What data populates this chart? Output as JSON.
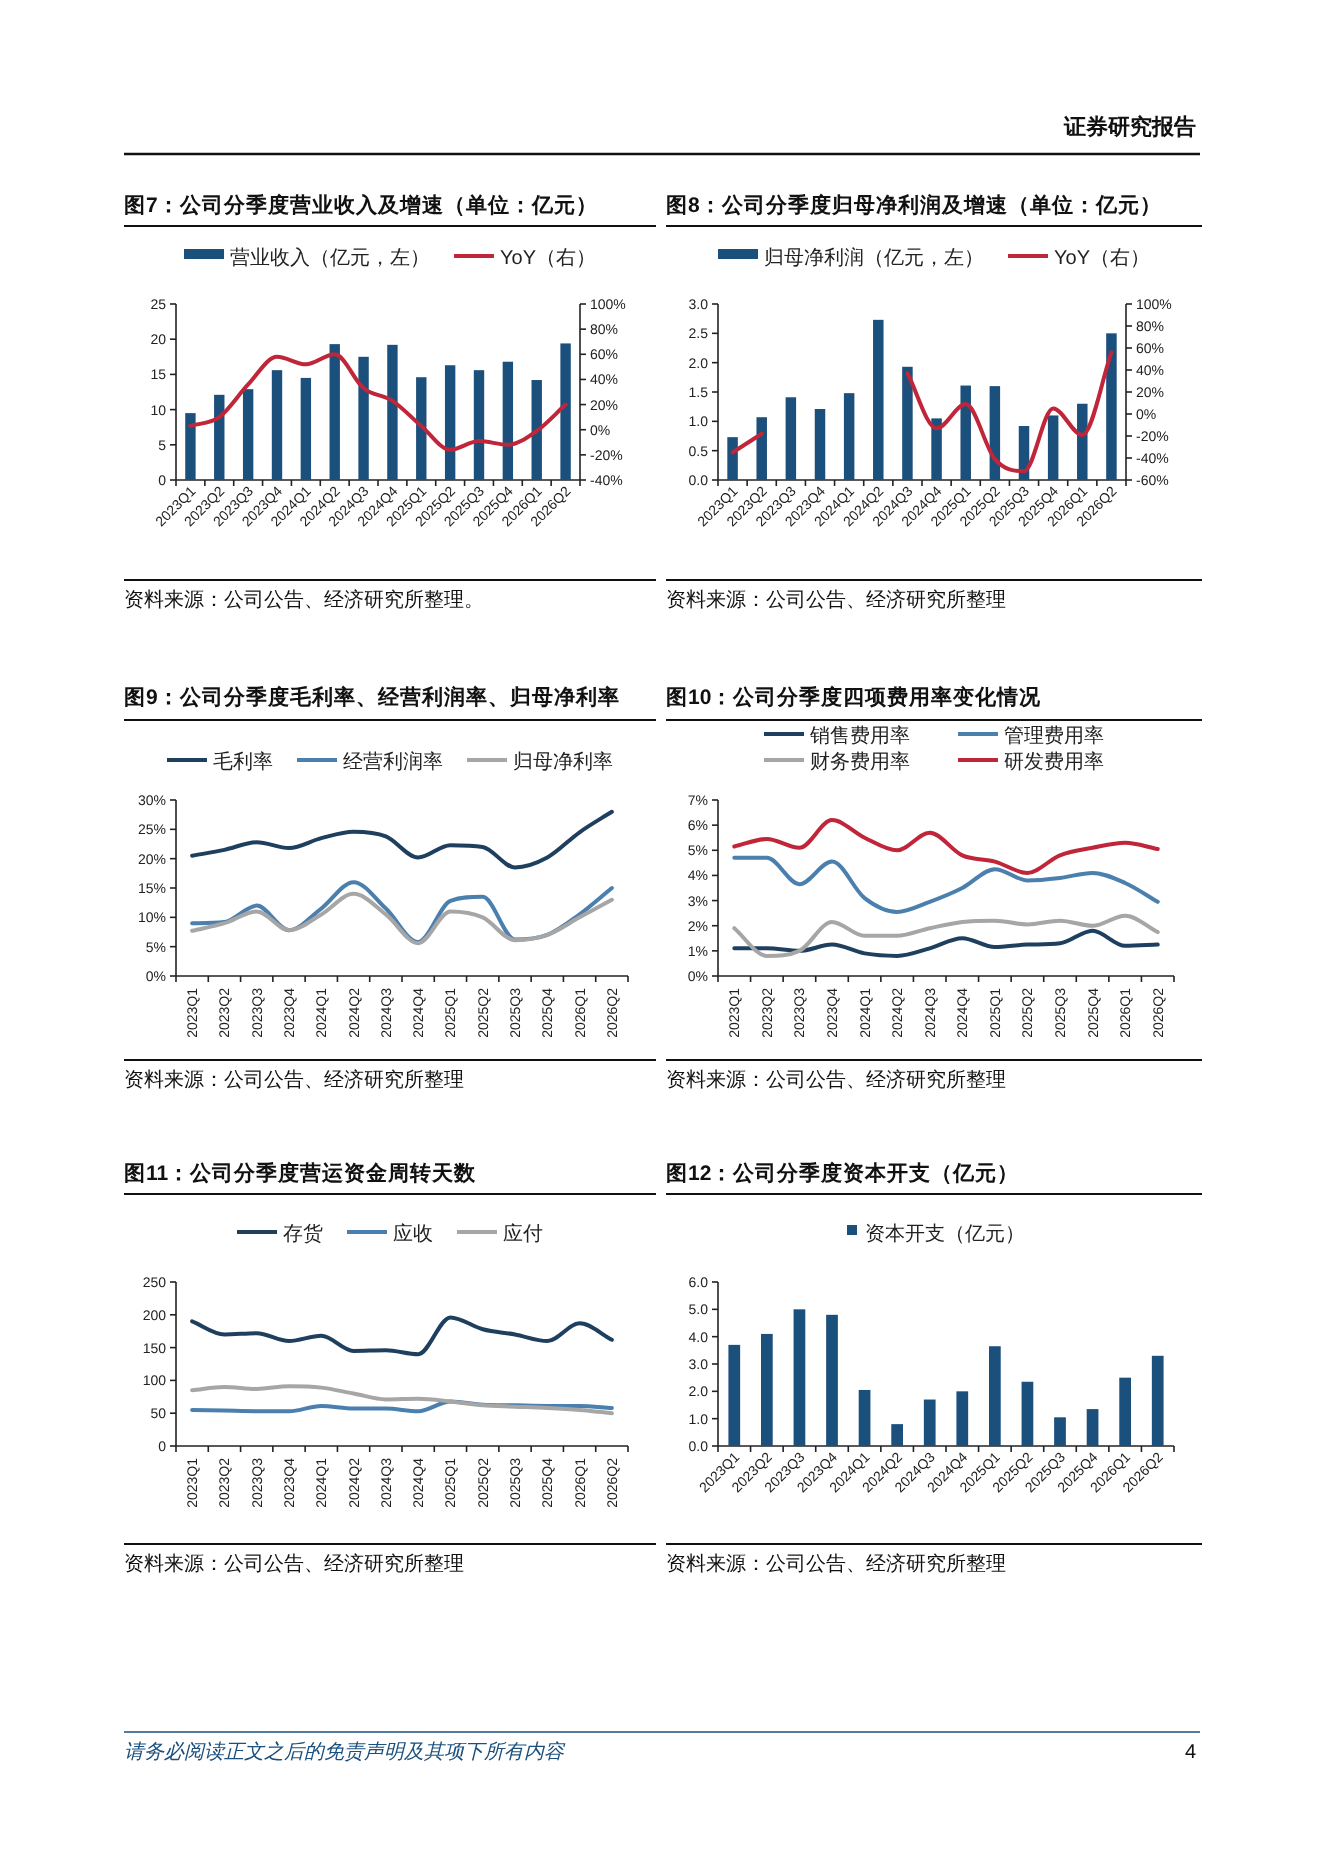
{
  "chart_data": [
    {
      "type": "bar",
      "title": "图7：公司分季度营业收入及增速（单位：亿元）",
      "categories": [
        "2023Q1",
        "2023Q2",
        "2023Q3",
        "2023Q4",
        "2024Q1",
        "2024Q2",
        "2024Q3",
        "2024Q4",
        "2025Q1",
        "2025Q2",
        "2025Q3",
        "2025Q4",
        "2026Q1",
        "2026Q2"
      ],
      "series": [
        {
          "name": "营业收入（亿元，左）",
          "color": "#1b4f7c",
          "values": [
            9.5,
            12.1,
            12.9,
            15.6,
            14.5,
            19.3,
            17.5,
            19.2,
            14.6,
            16.3,
            15.6,
            16.8,
            14.2,
            19.4
          ]
        },
        {
          "name": "YoY（右）",
          "type": "line",
          "axis": "y2",
          "color": "#c0263a",
          "values": [
            3,
            10,
            36,
            58,
            52,
            60,
            33,
            23,
            3,
            -16,
            -9,
            -12,
            -1,
            20
          ]
        }
      ],
      "ylim": [
        0,
        25
      ],
      "yticks": [
        0,
        5,
        10,
        15,
        20,
        25
      ],
      "y2lim": [
        -40,
        100
      ],
      "y2ticks": [
        {
          "value": -40,
          "label": "-40%"
        },
        {
          "value": -20,
          "label": "-20%"
        },
        {
          "value": 0,
          "label": "0%"
        },
        {
          "value": 20,
          "label": "20%"
        },
        {
          "value": 40,
          "label": "40%"
        },
        {
          "value": 60,
          "label": "60%"
        },
        {
          "value": 80,
          "label": "80%"
        },
        {
          "value": 100,
          "label": "100%"
        }
      ],
      "legend": "top",
      "annotations": [
        "资料来源：公司公告、经济研究所整理。"
      ]
    },
    {
      "type": "bar",
      "title": "图8：公司分季度归母净利润及增速（单位：亿元）",
      "categories": [
        "2023Q1",
        "2023Q2",
        "2023Q3",
        "2023Q4",
        "2024Q1",
        "2024Q2",
        "2024Q3",
        "2024Q4",
        "2025Q1",
        "2025Q2",
        "2025Q3",
        "2025Q4",
        "2026Q1",
        "2026Q2"
      ],
      "series": [
        {
          "name": "归母净利润（亿元，左）",
          "color": "#1b4f7c",
          "values": [
            0.73,
            1.07,
            1.41,
            1.21,
            1.48,
            2.73,
            1.93,
            1.05,
            1.61,
            1.6,
            0.92,
            1.1,
            1.3,
            2.5
          ]
        },
        {
          "name": "YoY（右）",
          "type": "line",
          "axis": "y2",
          "color": "#c0263a",
          "values": [
            -35,
            -18,
            null,
            null,
            null,
            null,
            37,
            -13,
            9,
            -41,
            -52,
            5,
            -19,
            56
          ]
        }
      ],
      "ylim": [
        0,
        3
      ],
      "yticks": [
        {
          "value": 0,
          "label": "0.0"
        },
        {
          "value": 0.5,
          "label": "0.5"
        },
        {
          "value": 1,
          "label": "1.0"
        },
        {
          "value": 1.5,
          "label": "1.5"
        },
        {
          "value": 2,
          "label": "2.0"
        },
        {
          "value": 2.5,
          "label": "2.5"
        },
        {
          "value": 3,
          "label": "3.0"
        }
      ],
      "y2lim": [
        -60,
        100
      ],
      "y2ticks": [
        {
          "value": -60,
          "label": "-60%"
        },
        {
          "value": -40,
          "label": "-40%"
        },
        {
          "value": -20,
          "label": "-20%"
        },
        {
          "value": 0,
          "label": "0%"
        },
        {
          "value": 20,
          "label": "20%"
        },
        {
          "value": 40,
          "label": "40%"
        },
        {
          "value": 60,
          "label": "60%"
        },
        {
          "value": 80,
          "label": "80%"
        },
        {
          "value": 100,
          "label": "100%"
        }
      ],
      "legend": "top",
      "annotations": [
        "资料来源：公司公告、经济研究所整理"
      ]
    },
    {
      "type": "line",
      "title": "图9：公司分季度毛利率、经营利润率、归母净利率",
      "categories": [
        "2023Q1",
        "2023Q2",
        "2023Q3",
        "2023Q4",
        "2024Q1",
        "2024Q2",
        "2024Q3",
        "2024Q4",
        "2025Q1",
        "2025Q2",
        "2025Q3",
        "2025Q4",
        "2026Q1",
        "2026Q2"
      ],
      "series": [
        {
          "name": "毛利率",
          "color": "#1f3f5f",
          "values": [
            20.5,
            21.5,
            22.8,
            21.8,
            23.5,
            24.6,
            23.8,
            20.2,
            22.3,
            22.0,
            18.5,
            20.2,
            24.5,
            28.0
          ]
        },
        {
          "name": "经营利润率",
          "color": "#4a7fae",
          "values": [
            9.0,
            9.2,
            12.0,
            7.8,
            11.5,
            16.0,
            11.5,
            5.8,
            12.8,
            13.5,
            6.2,
            7.0,
            10.5,
            15.0
          ]
        },
        {
          "name": "归母净利率",
          "color": "#a6a6a6",
          "values": [
            7.7,
            9.0,
            11.0,
            7.8,
            10.5,
            14.0,
            10.5,
            5.6,
            11.0,
            10.0,
            6.1,
            7.0,
            10.0,
            13.0
          ]
        }
      ],
      "ylim": [
        0,
        30
      ],
      "yticks": [
        {
          "value": 0,
          "label": "0%"
        },
        {
          "value": 5,
          "label": "5%"
        },
        {
          "value": 10,
          "label": "10%"
        },
        {
          "value": 15,
          "label": "15%"
        },
        {
          "value": 20,
          "label": "20%"
        },
        {
          "value": 25,
          "label": "25%"
        },
        {
          "value": 30,
          "label": "30%"
        }
      ],
      "legend": "top",
      "annotations": [
        "资料来源：公司公告、经济研究所整理"
      ]
    },
    {
      "type": "line",
      "title": "图10：公司分季度四项费用率变化情况",
      "categories": [
        "2023Q1",
        "2023Q2",
        "2023Q3",
        "2023Q4",
        "2024Q1",
        "2024Q2",
        "2024Q3",
        "2024Q4",
        "2025Q1",
        "2025Q2",
        "2025Q3",
        "2025Q4",
        "2026Q1",
        "2026Q2"
      ],
      "series": [
        {
          "name": "销售费用率",
          "color": "#1f3f5f",
          "values": [
            1.1,
            1.1,
            1.0,
            1.25,
            0.9,
            0.8,
            1.1,
            1.5,
            1.15,
            1.25,
            1.3,
            1.8,
            1.2,
            1.25
          ]
        },
        {
          "name": "管理费用率",
          "color": "#4a7fae",
          "values": [
            4.7,
            4.7,
            3.65,
            4.55,
            3.1,
            2.55,
            2.95,
            3.5,
            4.25,
            3.8,
            3.9,
            4.1,
            3.7,
            2.95
          ]
        },
        {
          "name": "财务费用率",
          "color": "#a6a6a6",
          "values": [
            1.9,
            0.8,
            1.0,
            2.15,
            1.6,
            1.6,
            1.9,
            2.15,
            2.2,
            2.05,
            2.2,
            2.0,
            2.4,
            1.75
          ]
        },
        {
          "name": "研发费用率",
          "color": "#c0263a",
          "values": [
            5.15,
            5.45,
            5.1,
            6.2,
            5.5,
            5.0,
            5.7,
            4.8,
            4.55,
            4.1,
            4.8,
            5.1,
            5.3,
            5.05
          ]
        }
      ],
      "ylim": [
        0,
        7
      ],
      "yticks": [
        {
          "value": 0,
          "label": "0%"
        },
        {
          "value": 1,
          "label": "1%"
        },
        {
          "value": 2,
          "label": "2%"
        },
        {
          "value": 3,
          "label": "3%"
        },
        {
          "value": 4,
          "label": "4%"
        },
        {
          "value": 5,
          "label": "5%"
        },
        {
          "value": 6,
          "label": "6%"
        },
        {
          "value": 7,
          "label": "7%"
        }
      ],
      "legend": "top",
      "annotations": [
        "资料来源：公司公告、经济研究所整理"
      ]
    },
    {
      "type": "line",
      "title": "图11：公司分季度营运资金周转天数",
      "categories": [
        "2023Q1",
        "2023Q2",
        "2023Q3",
        "2023Q4",
        "2024Q1",
        "2024Q2",
        "2024Q3",
        "2024Q4",
        "2025Q1",
        "2025Q2",
        "2025Q3",
        "2025Q4",
        "2026Q1",
        "2026Q2"
      ],
      "series": [
        {
          "name": "存货",
          "color": "#1f3f5f",
          "values": [
            190,
            170,
            172,
            160,
            168,
            145,
            146,
            140,
            196,
            178,
            170,
            160,
            187,
            162
          ]
        },
        {
          "name": "应收",
          "color": "#4a7fae",
          "values": [
            55,
            54,
            53,
            53,
            61,
            57,
            57,
            53,
            68,
            63,
            62,
            61,
            61,
            58
          ]
        },
        {
          "name": "应付",
          "color": "#a6a6a6",
          "values": [
            85,
            90,
            87,
            91,
            89,
            80,
            71,
            72,
            68,
            62,
            60,
            58,
            55,
            50
          ]
        }
      ],
      "ylim": [
        0,
        250
      ],
      "yticks": [
        0,
        50,
        100,
        150,
        200,
        250
      ],
      "legend": "top",
      "annotations": [
        "资料来源：公司公告、经济研究所整理"
      ]
    },
    {
      "type": "bar",
      "title": "图12：公司分季度资本开支（亿元）",
      "categories": [
        "2023Q1",
        "2023Q2",
        "2023Q3",
        "2023Q4",
        "2024Q1",
        "2024Q2",
        "2024Q3",
        "2024Q4",
        "2025Q1",
        "2025Q2",
        "2025Q3",
        "2025Q4",
        "2026Q1",
        "2026Q2"
      ],
      "series": [
        {
          "name": "资本开支（亿元）",
          "color": "#1b4f7c",
          "values": [
            3.7,
            4.1,
            5.0,
            4.8,
            2.05,
            0.8,
            1.7,
            2.0,
            3.65,
            2.35,
            1.05,
            1.35,
            2.5,
            3.3
          ]
        }
      ],
      "ylim": [
        0,
        6
      ],
      "yticks": [
        {
          "value": 0,
          "label": "0.0"
        },
        {
          "value": 1,
          "label": "1.0"
        },
        {
          "value": 2,
          "label": "2.0"
        },
        {
          "value": 3,
          "label": "3.0"
        },
        {
          "value": 4,
          "label": "4.0"
        },
        {
          "value": 5,
          "label": "5.0"
        },
        {
          "value": 6,
          "label": "6.0"
        }
      ],
      "legend": "top",
      "annotations": [
        "资料来源：公司公告、经济研究所整理"
      ]
    },
    {
      "type": "other",
      "annotations": [
        "证券研究报告",
        "请务必阅读正文之后的免责声明及其项下所有内容",
        "4"
      ]
    }
  ]
}
